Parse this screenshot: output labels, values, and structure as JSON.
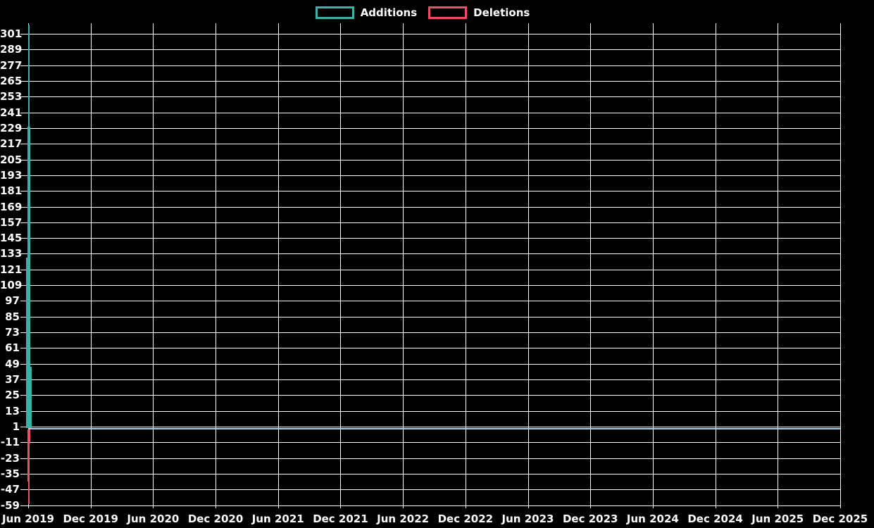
{
  "legend": {
    "additions_label": "Additions",
    "deletions_label": "Deletions"
  },
  "chart_data": {
    "type": "bar",
    "title": "",
    "xlabel": "",
    "ylabel": "",
    "background": "#000000",
    "grid": true,
    "grid_color": "#ffffff",
    "text_color": "#ffffff",
    "zero_axis_color": "#a9cede",
    "legend_position": "top-center",
    "x_labels": [
      "Jun 2019",
      "Dec 2019",
      "Jun 2020",
      "Dec 2020",
      "Jun 2021",
      "Dec 2021",
      "Jun 2022",
      "Dec 2022",
      "Jun 2023",
      "Dec 2023",
      "Jun 2024",
      "Dec 2024",
      "Jun 2025",
      "Dec 2025"
    ],
    "y_ticks": [
      301,
      289,
      277,
      265,
      253,
      241,
      229,
      217,
      205,
      193,
      181,
      169,
      157,
      145,
      133,
      121,
      109,
      97,
      85,
      73,
      61,
      49,
      37,
      25,
      13,
      1,
      -11,
      -23,
      -35,
      -47,
      -59
    ],
    "ylim": [
      -59,
      309
    ],
    "series": [
      {
        "name": "Additions",
        "color": "#3fb0a8",
        "x": "Jun 2019",
        "note": "all activity clustered at first date; overlapping thin weekly bars",
        "spikes": [
          {
            "value": 308,
            "dx": 0,
            "w": 2
          },
          {
            "value": 230,
            "dx": -1,
            "w": 4
          },
          {
            "value": 130,
            "dx": -3,
            "w": 2
          },
          {
            "value": 47,
            "dx": 2,
            "w": 3
          }
        ]
      },
      {
        "name": "Deletions",
        "color": "#ee4f68",
        "x": "Jun 2019",
        "note": "all activity clustered at first date; overlapping thin weekly bars",
        "spikes": [
          {
            "value": -11,
            "dx": -1.5,
            "w": 4
          },
          {
            "value": -40,
            "dx": -1,
            "w": 2.5
          },
          {
            "value": -57,
            "dx": -0.5,
            "w": 2
          }
        ]
      }
    ]
  }
}
